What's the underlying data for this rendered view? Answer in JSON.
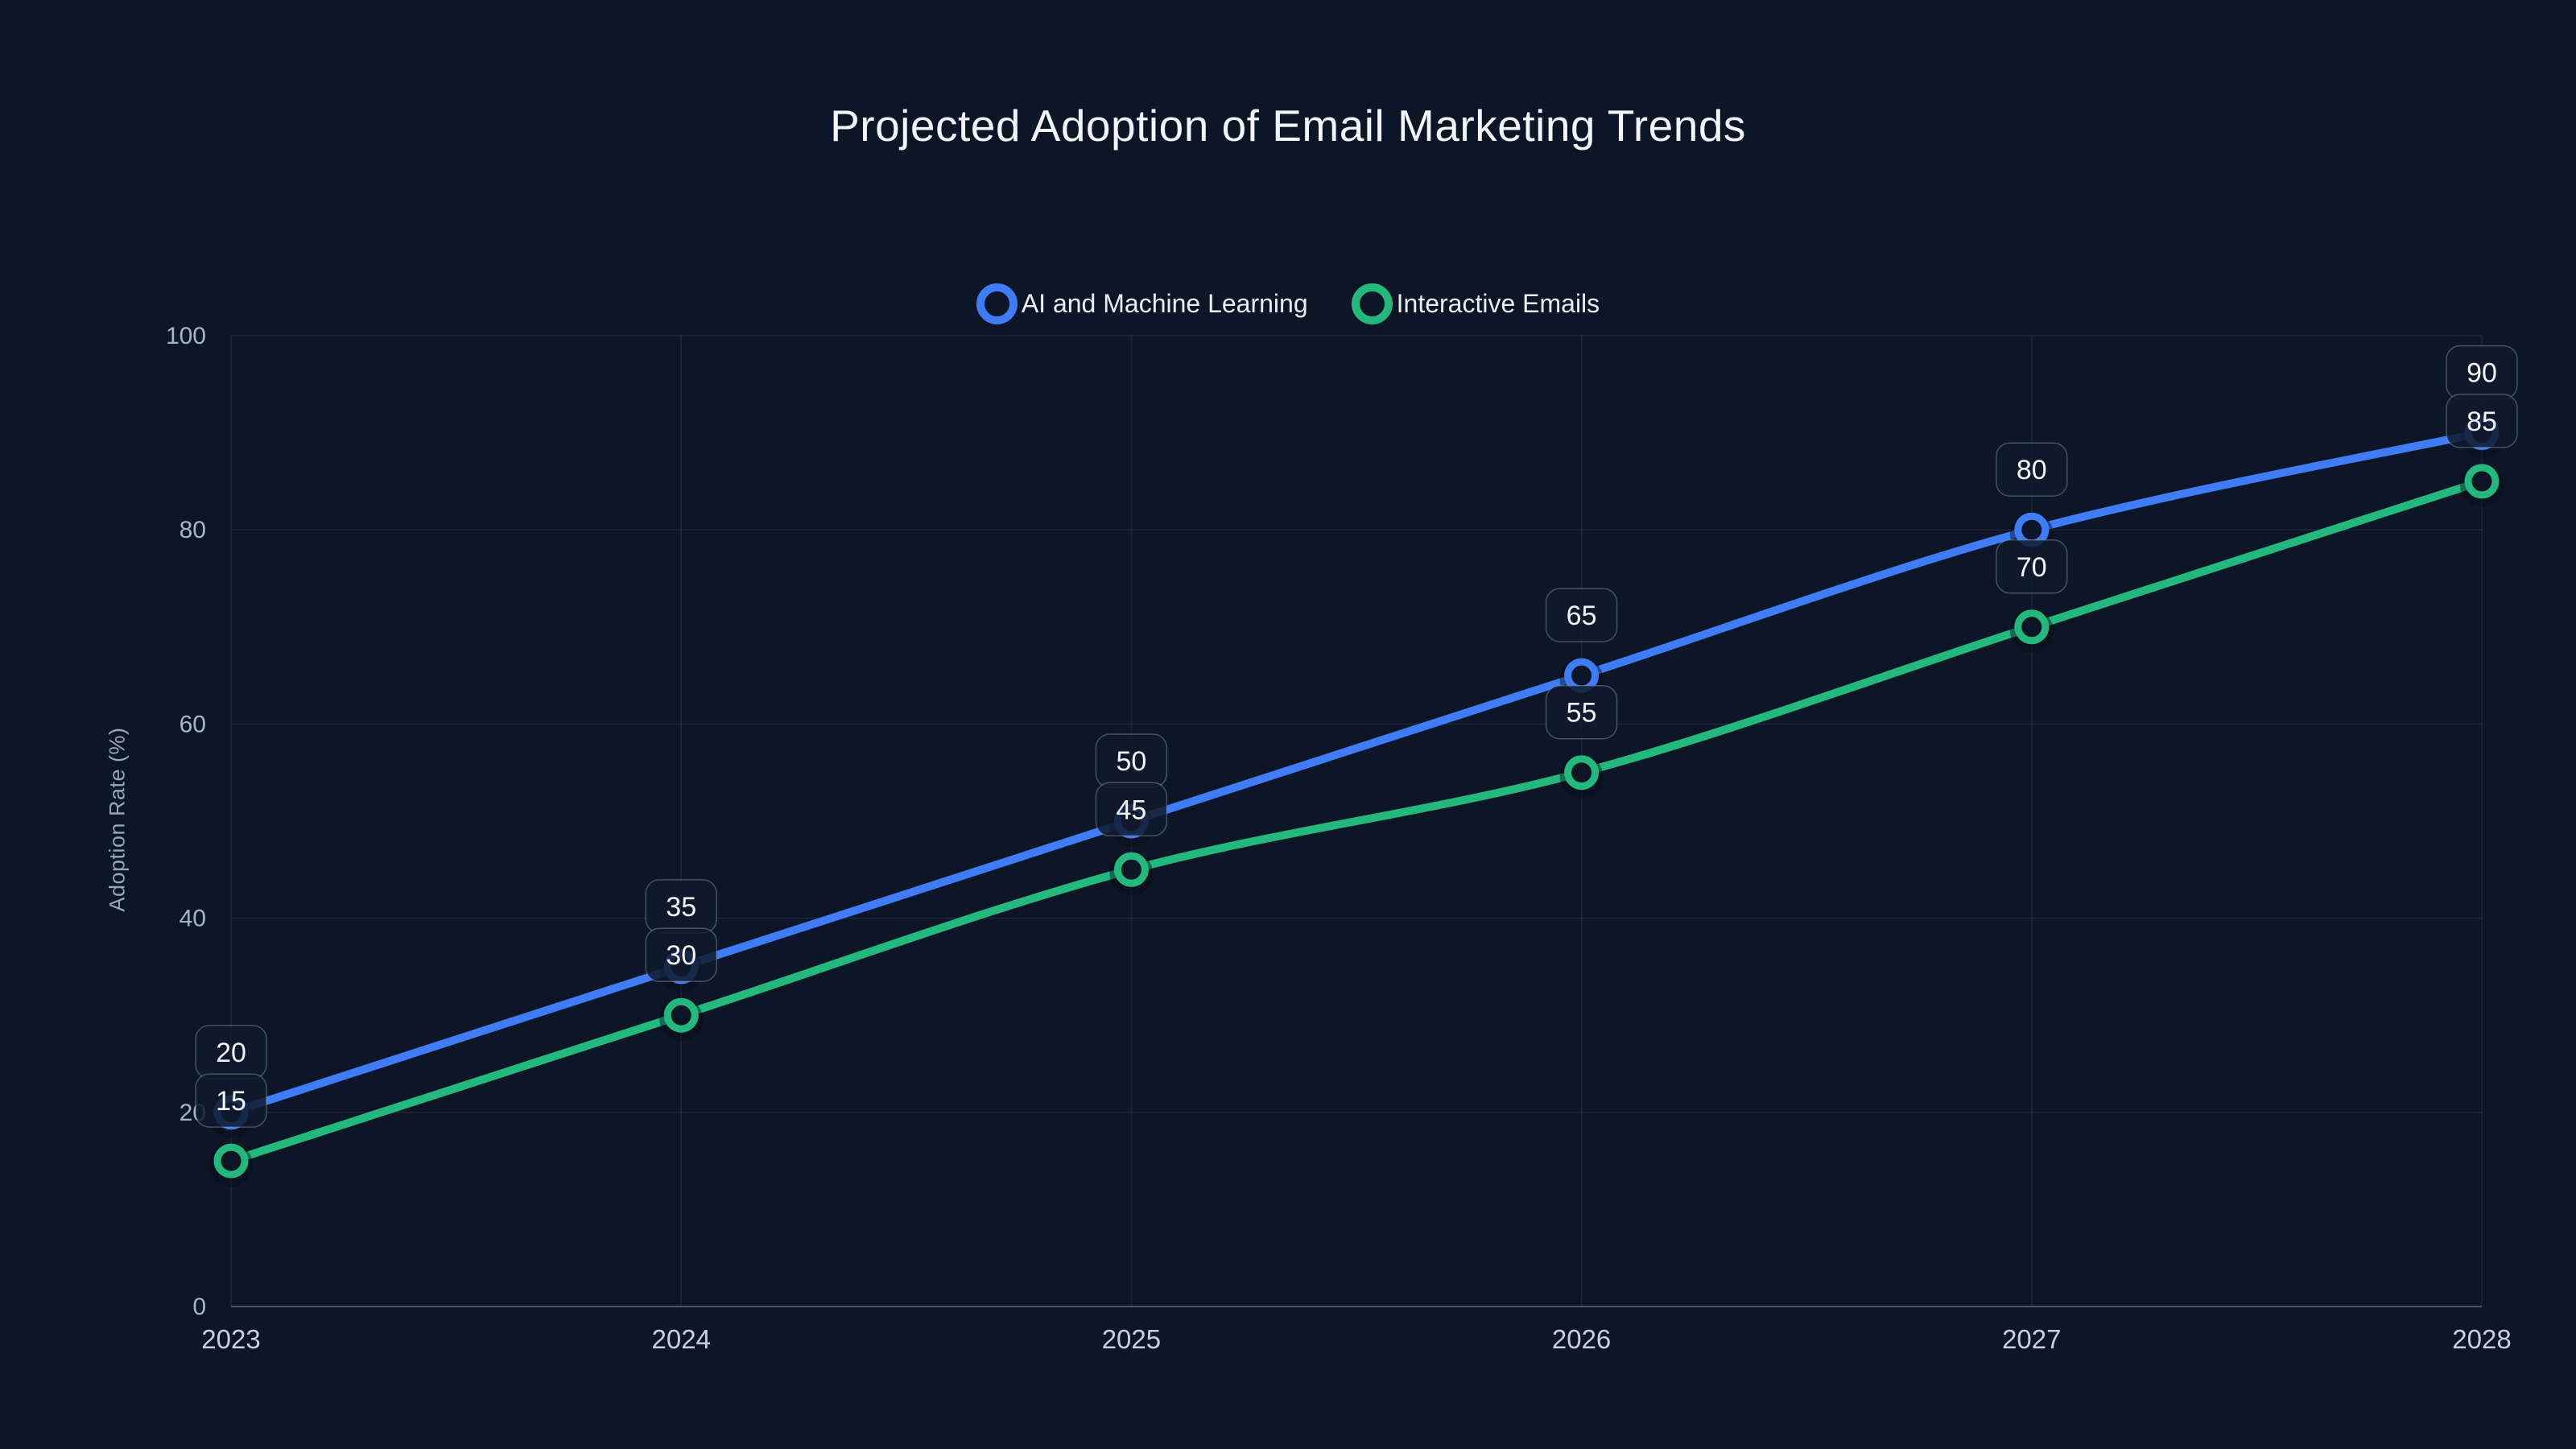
{
  "title": "Projected Adoption of Email Marketing Trends",
  "chart_data": {
    "type": "line",
    "title": "Projected Adoption of Email Marketing Trends",
    "categories": [
      "2023",
      "2024",
      "2025",
      "2026",
      "2027",
      "2028"
    ],
    "series": [
      {
        "name": "AI and Machine Learning",
        "color": "#3E7DF7",
        "values": [
          20,
          35,
          50,
          65,
          80,
          90
        ]
      },
      {
        "name": "Interactive Emails",
        "color": "#23B97D",
        "values": [
          15,
          30,
          45,
          55,
          70,
          85
        ]
      }
    ],
    "xlabel": "",
    "ylabel": "Adoption Rate (%)",
    "ylim": [
      0,
      100
    ],
    "yticks": [
      0,
      20,
      40,
      60,
      80,
      100
    ],
    "grid": true,
    "legend_position": "top",
    "point_labels": true,
    "marker_style": "hollow-circle"
  },
  "colors": {
    "background": "#0d1627",
    "grid": "rgba(148,163,184,0.13)",
    "axis_line": "rgba(148,163,184,0.45)",
    "y_tick_label": "#a9b4c8",
    "x_tick_label": "#c7d0df",
    "label_box_bg": "rgba(17,26,45,0.85)",
    "label_box_border": "rgba(148,163,184,0.42)",
    "label_text": "#f3f6fb",
    "title_text": "#f2f5fa",
    "legend_text": "#e9edf4",
    "axis_title_text": "#98a4b9"
  }
}
